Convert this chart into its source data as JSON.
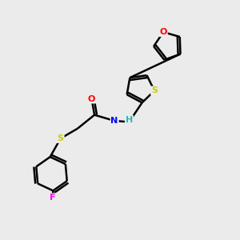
{
  "background_color": "#ebebeb",
  "bond_color": "#000000",
  "atom_colors": {
    "O": "#ff0000",
    "N": "#0000ff",
    "S": "#cccc00",
    "F": "#ff00ff",
    "C": "#000000",
    "H": "#22bbbb"
  },
  "figsize": [
    3.0,
    3.0
  ],
  "dpi": 100
}
